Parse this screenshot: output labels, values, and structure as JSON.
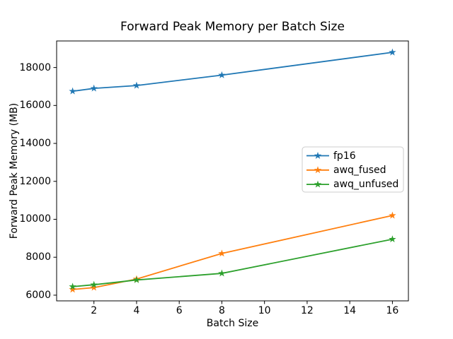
{
  "figure": {
    "background": "#ffffff",
    "spine_color": "#000000",
    "text_color": "#000000"
  },
  "chart_data": {
    "type": "line",
    "title": "Forward Peak Memory per Batch Size",
    "xlabel": "Batch Size",
    "ylabel": "Forward Peak Memory (MB)",
    "x": [
      1,
      2,
      4,
      8,
      16
    ],
    "series": [
      {
        "name": "fp16",
        "color": "#1f77b4",
        "values": [
          16750,
          16900,
          17050,
          17600,
          18800
        ]
      },
      {
        "name": "awq_fused",
        "color": "#ff7f0e",
        "values": [
          6300,
          6400,
          6850,
          8200,
          10200
        ]
      },
      {
        "name": "awq_unfused",
        "color": "#2ca02c",
        "values": [
          6450,
          6550,
          6800,
          7150,
          8950
        ]
      }
    ],
    "xlim": [
      0.25,
      16.75
    ],
    "ylim": [
      5700,
      19400
    ],
    "xticks": [
      2,
      4,
      6,
      8,
      10,
      12,
      14,
      16
    ],
    "yticks": [
      6000,
      8000,
      10000,
      12000,
      14000,
      16000,
      18000
    ],
    "marker": "star",
    "grid": false,
    "legend": {
      "position": "center right",
      "entries": [
        "fp16",
        "awq_fused",
        "awq_unfused"
      ]
    }
  }
}
